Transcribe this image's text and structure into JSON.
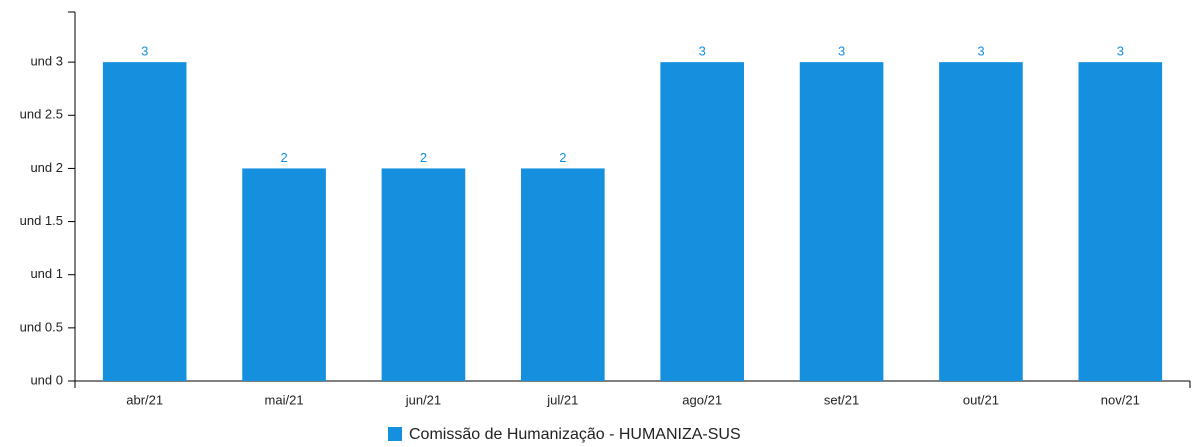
{
  "chart_data": {
    "type": "bar",
    "categories": [
      "abr/21",
      "mai/21",
      "jun/21",
      "jul/21",
      "ago/21",
      "set/21",
      "out/21",
      "nov/21"
    ],
    "series": [
      {
        "name": "Comissão de Humanização - HUMANIZA-SUS",
        "color": "#1490df",
        "values": [
          3,
          2,
          2,
          2,
          3,
          3,
          3,
          3
        ]
      }
    ],
    "ylim": [
      0,
      3.5
    ],
    "yticks": [
      {
        "value": 0,
        "label": "und 0"
      },
      {
        "value": 0.5,
        "label": "und 0.5"
      },
      {
        "value": 1,
        "label": "und 1"
      },
      {
        "value": 1.5,
        "label": "und 1.5"
      },
      {
        "value": 2,
        "label": "und 2"
      },
      {
        "value": 2.5,
        "label": "und 2.5"
      },
      {
        "value": 3,
        "label": "und 3"
      }
    ],
    "legend": "bottom"
  }
}
